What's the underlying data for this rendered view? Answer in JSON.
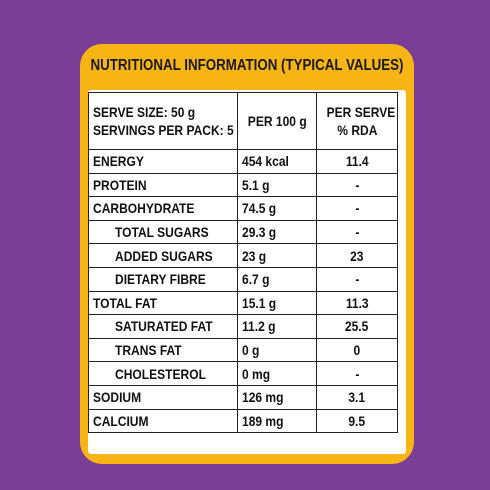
{
  "header": {
    "title": "NUTRITIONAL INFORMATION (TYPICAL VALUES)"
  },
  "table": {
    "head": {
      "serve_size": "SERVE SIZE: 50 g",
      "servings_per_pack": "SERVINGS PER PACK: 5",
      "per_100g": "PER 100 g",
      "per_serve_line1": "PER SERVE",
      "per_serve_line2": "% RDA"
    },
    "rows": [
      {
        "name": "ENERGY",
        "per100": "454 kcal",
        "rda": "11.4"
      },
      {
        "name": "PROTEIN",
        "per100": "5.1 g",
        "rda": "-"
      },
      {
        "name": "CARBOHYDRATE",
        "per100": "74.5 g",
        "rda": "-"
      },
      {
        "name": "TOTAL SUGARS",
        "per100": "29.3 g",
        "rda": "-"
      },
      {
        "name": "ADDED SUGARS",
        "per100": "23 g",
        "rda": "23"
      },
      {
        "name": "DIETARY FIBRE",
        "per100": "6.7 g",
        "rda": "-"
      },
      {
        "name": "TOTAL FAT",
        "per100": "15.1 g",
        "rda": "11.3"
      },
      {
        "name": "SATURATED FAT",
        "per100": "11.2 g",
        "rda": "25.5"
      },
      {
        "name": "TRANS FAT",
        "per100": "0 g",
        "rda": "0"
      },
      {
        "name": "CHOLESTEROL",
        "per100": "0 mg",
        "rda": "-"
      },
      {
        "name": "SODIUM",
        "per100": "126 mg",
        "rda": "3.1"
      },
      {
        "name": "CALCIUM",
        "per100": "189 mg",
        "rda": "9.5"
      }
    ]
  },
  "colors": {
    "background": "#7a3e96",
    "label_border": "#f6b514",
    "sheet": "#ffffff",
    "text": "#111111"
  }
}
